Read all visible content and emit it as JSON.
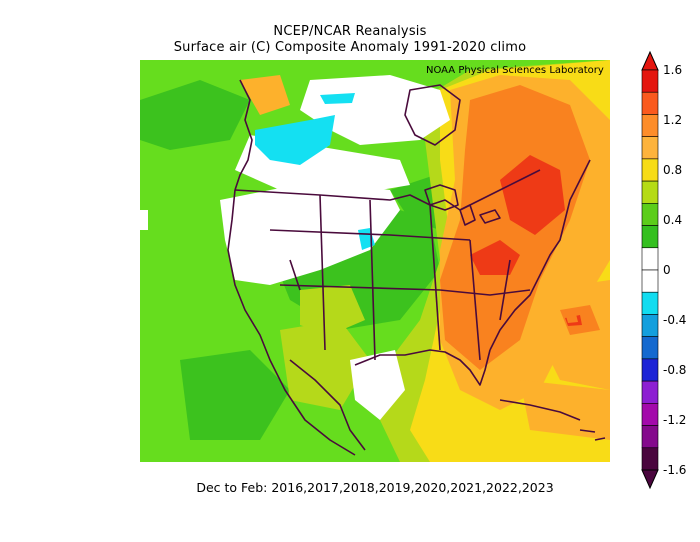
{
  "title_line1": "NCEP/NCAR Reanalysis",
  "title_line2": "Surface air (C) Composite Anomaly 1991-2020 climo",
  "credit": "NOAA Physical Sciences Laboratory",
  "footer": "Dec to Feb: 2016,2017,2018,2019,2020,2021,2022,2023",
  "colorbar": {
    "ticks": [
      "1.6",
      "1.2",
      "0.8",
      "0.4",
      "0",
      "-0.4",
      "-0.8",
      "-1.2",
      "-1.6"
    ],
    "colors": [
      "#e4160f",
      "#fa5a1e",
      "#fd8d2a",
      "#fdb33c",
      "#f7dc17",
      "#b5db16",
      "#5ccd1a",
      "#34c01f",
      "#ffffff",
      "#ffffff",
      "#12dcf0",
      "#139fdd",
      "#1469cf",
      "#1d24d6",
      "#8d1fd2",
      "#a30aab",
      "#840a8c",
      "#4a063e"
    ]
  },
  "map_colors": {
    "light_green": "#66dd1e",
    "green": "#3cc21e",
    "yellow_green": "#b5d91a",
    "yellow": "#f8dc17",
    "orange": "#fdb12c",
    "dark_orange": "#f9821f",
    "red": "#ee3a16",
    "cyan": "#14e0f2",
    "white": "#ffffff",
    "coast": "#4a0b3c"
  }
}
